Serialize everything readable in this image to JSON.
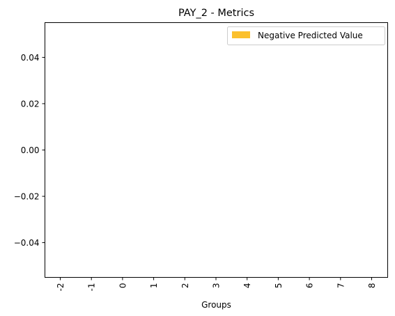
{
  "chart_data": {
    "type": "bar",
    "title": "PAY_2 - Metrics",
    "xlabel": "Groups",
    "ylabel": "",
    "categories": [
      "-2",
      "-1",
      "0",
      "1",
      "2",
      "3",
      "4",
      "5",
      "6",
      "7",
      "8"
    ],
    "series": [
      {
        "name": "Negative Predicted Value",
        "values": [
          null,
          null,
          null,
          null,
          null,
          null,
          null,
          null,
          null,
          null,
          null
        ],
        "color": "#fbc02d"
      }
    ],
    "ylim": [
      -0.055,
      0.055
    ],
    "yticks": [
      "0.04",
      "0.02",
      "0.00",
      "−0.02",
      "−0.04"
    ],
    "ytick_values": [
      0.04,
      0.02,
      0.0,
      -0.02,
      -0.04
    ],
    "grid": false,
    "legend_position": "upper-right"
  }
}
